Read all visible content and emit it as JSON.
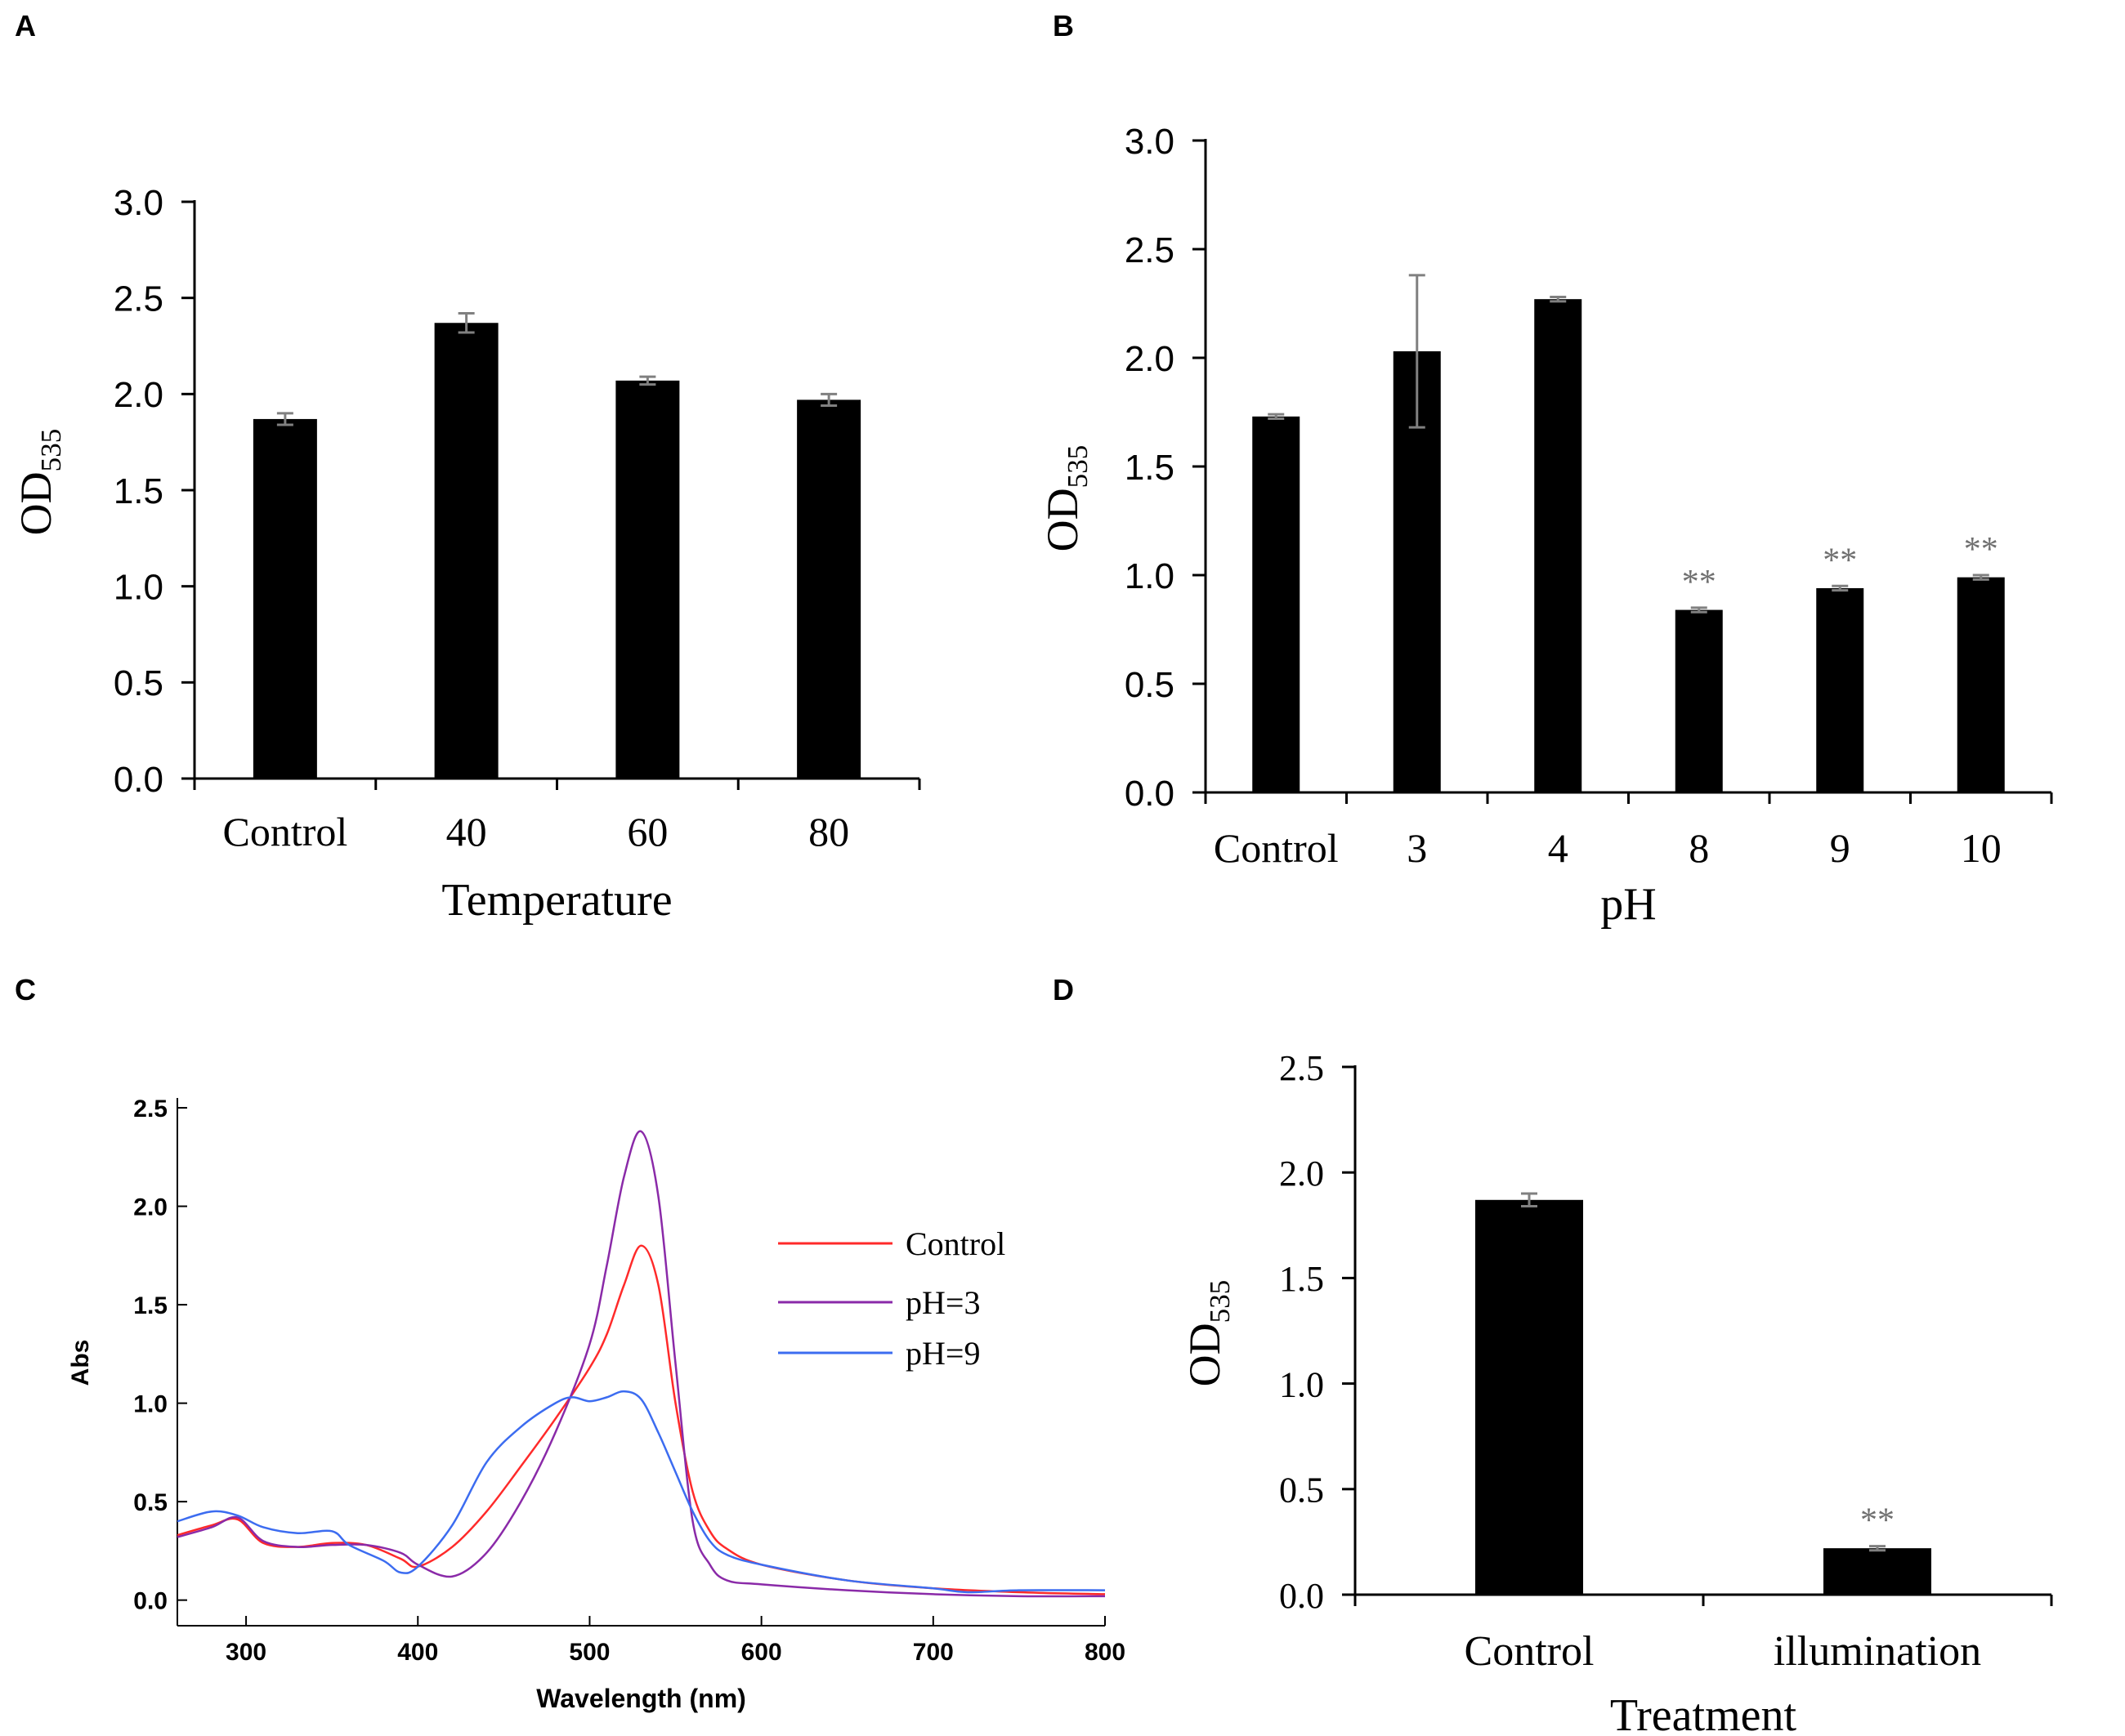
{
  "panels": {
    "a": "A",
    "b": "B",
    "c": "C",
    "d": "D"
  },
  "colors": {
    "bar": "#000000",
    "error": "#808080",
    "star": "#707070",
    "control_line": "#ff2a2a",
    "ph3_line": "#8a2aa8",
    "ph9_line": "#3c6cf0"
  },
  "chart_data": [
    {
      "id": "A",
      "type": "bar",
      "categories": [
        "Control",
        "40",
        "60",
        "80"
      ],
      "values": [
        1.87,
        2.37,
        2.07,
        1.97
      ],
      "errors": [
        0.03,
        0.05,
        0.02,
        0.03
      ],
      "significance": [
        "",
        "",
        "",
        ""
      ],
      "yticks": [
        "0.0",
        "0.5",
        "1.0",
        "1.5",
        "2.0",
        "2.5",
        "3.0"
      ],
      "ylim": [
        0,
        3.0
      ],
      "ylabel": "OD",
      "ylabel_sub": "535",
      "xlabel": "Temperature"
    },
    {
      "id": "B",
      "type": "bar",
      "categories": [
        "Control",
        "3",
        "4",
        "8",
        "9",
        "10"
      ],
      "values": [
        1.73,
        2.03,
        2.27,
        0.84,
        0.94,
        0.99
      ],
      "errors": [
        0.01,
        0.35,
        0.01,
        0.01,
        0.01,
        0.01
      ],
      "significance": [
        "",
        "",
        "",
        "**",
        "**",
        "**"
      ],
      "yticks": [
        "0.0",
        "0.5",
        "1.0",
        "1.5",
        "2.0",
        "2.5",
        "3.0"
      ],
      "ylim": [
        0,
        3.0
      ],
      "ylabel": "OD",
      "ylabel_sub": "535",
      "xlabel": "pH"
    },
    {
      "id": "C",
      "type": "line",
      "xlabel": "Wavelength (nm)",
      "ylabel": "Abs",
      "xlim": [
        260,
        800
      ],
      "ylim": [
        -0.13,
        2.55
      ],
      "xticks": [
        "300",
        "400",
        "500",
        "600",
        "700",
        "800"
      ],
      "yticks": [
        "0.0",
        "0.5",
        "1.0",
        "1.5",
        "2.0",
        "2.5"
      ],
      "legend": [
        "Control",
        "pH=3",
        "pH=9"
      ],
      "series": [
        {
          "name": "Control",
          "x": [
            260,
            280,
            295,
            310,
            330,
            350,
            370,
            390,
            400,
            420,
            440,
            460,
            480,
            500,
            510,
            520,
            530,
            540,
            550,
            560,
            570,
            580,
            600,
            650,
            700,
            750,
            800
          ],
          "y": [
            0.33,
            0.38,
            0.41,
            0.29,
            0.27,
            0.29,
            0.28,
            0.21,
            0.17,
            0.27,
            0.45,
            0.68,
            0.92,
            1.18,
            1.35,
            1.6,
            1.8,
            1.6,
            1.0,
            0.55,
            0.35,
            0.26,
            0.18,
            0.1,
            0.06,
            0.04,
            0.03
          ]
        },
        {
          "name": "pH=3",
          "x": [
            260,
            280,
            295,
            310,
            330,
            350,
            370,
            390,
            400,
            420,
            440,
            460,
            480,
            500,
            510,
            520,
            530,
            540,
            550,
            560,
            570,
            580,
            600,
            650,
            700,
            750,
            800
          ],
          "y": [
            0.32,
            0.37,
            0.42,
            0.3,
            0.27,
            0.28,
            0.28,
            0.24,
            0.18,
            0.12,
            0.24,
            0.5,
            0.85,
            1.3,
            1.7,
            2.15,
            2.38,
            2.05,
            1.2,
            0.4,
            0.18,
            0.1,
            0.08,
            0.05,
            0.03,
            0.02,
            0.02
          ]
        },
        {
          "name": "pH=9",
          "x": [
            260,
            280,
            295,
            310,
            330,
            350,
            360,
            380,
            390,
            400,
            420,
            440,
            460,
            480,
            490,
            500,
            510,
            520,
            530,
            540,
            550,
            560,
            570,
            580,
            600,
            650,
            700,
            720,
            750,
            800
          ],
          "y": [
            0.4,
            0.45,
            0.43,
            0.37,
            0.34,
            0.35,
            0.28,
            0.2,
            0.14,
            0.17,
            0.38,
            0.7,
            0.88,
            1.0,
            1.03,
            1.01,
            1.03,
            1.06,
            1.02,
            0.85,
            0.65,
            0.45,
            0.3,
            0.23,
            0.18,
            0.1,
            0.06,
            0.04,
            0.05,
            0.05
          ]
        }
      ]
    },
    {
      "id": "D",
      "type": "bar",
      "categories": [
        "Control",
        "illumination"
      ],
      "values": [
        1.87,
        0.22
      ],
      "errors": [
        0.03,
        0.01
      ],
      "significance": [
        "",
        "**"
      ],
      "yticks": [
        "0.0",
        "0.5",
        "1.0",
        "1.5",
        "2.0",
        "2.5"
      ],
      "ylim": [
        0,
        2.5
      ],
      "ylabel": "OD",
      "ylabel_sub": "535",
      "xlabel": "Treatment"
    }
  ]
}
